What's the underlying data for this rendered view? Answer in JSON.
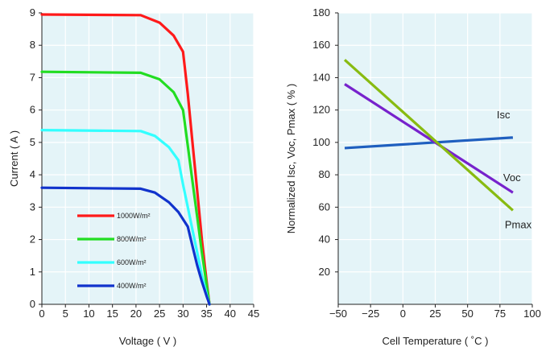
{
  "chart_data": [
    {
      "type": "line",
      "xlabel": "Voltage ( V )",
      "ylabel": "Current ( A )",
      "xlim": [
        0,
        45
      ],
      "ylim": [
        0,
        9
      ],
      "xticks": [
        "0",
        "5",
        "10",
        "15",
        "20",
        "25",
        "30",
        "35",
        "40",
        "45"
      ],
      "yticks": [
        "0",
        "1",
        "2",
        "3",
        "4",
        "5",
        "6",
        "7",
        "8",
        "9"
      ],
      "grid": true,
      "legend_position": "bottom-left",
      "series": [
        {
          "name": "1000W/m²",
          "color": "#ff1a1a",
          "x": [
            0,
            21,
            25,
            28,
            30,
            31,
            32,
            33,
            34,
            35,
            35.6
          ],
          "y": [
            8.95,
            8.93,
            8.7,
            8.3,
            7.8,
            6.5,
            5.0,
            3.5,
            2.0,
            0.7,
            0
          ]
        },
        {
          "name": "800W/m²",
          "color": "#22dd22",
          "x": [
            0,
            21,
            25,
            28,
            30,
            31,
            32,
            33,
            34,
            35,
            35.6
          ],
          "y": [
            7.18,
            7.15,
            6.95,
            6.55,
            6.0,
            4.9,
            3.8,
            2.7,
            1.6,
            0.6,
            0
          ]
        },
        {
          "name": "600W/m²",
          "color": "#33ffff",
          "x": [
            0,
            21,
            24,
            27,
            29,
            30,
            31,
            32,
            33,
            34,
            35,
            35.6
          ],
          "y": [
            5.38,
            5.35,
            5.2,
            4.85,
            4.45,
            3.7,
            3.0,
            2.3,
            1.6,
            0.9,
            0.3,
            0
          ]
        },
        {
          "name": "400W/m²",
          "color": "#1133cc",
          "x": [
            0,
            21,
            24,
            27,
            29,
            31,
            32,
            33,
            34,
            35,
            35.6
          ],
          "y": [
            3.6,
            3.57,
            3.45,
            3.15,
            2.85,
            2.4,
            1.8,
            1.2,
            0.7,
            0.25,
            0
          ]
        }
      ]
    },
    {
      "type": "line",
      "xlabel": "Cell Temperature ( ˚C )",
      "ylabel": "Normalized Isc, Voc, Pmax ( % )",
      "xlim": [
        -50,
        100
      ],
      "ylim": [
        0,
        180
      ],
      "xticks": [
        "−50",
        "−25",
        "0",
        "25",
        "50",
        "75",
        "100"
      ],
      "yticks": [
        "20",
        "40",
        "60",
        "80",
        "100",
        "120",
        "140",
        "160",
        "180"
      ],
      "grid": true,
      "series": [
        {
          "name": "Isc",
          "color": "#1f5fbf",
          "x": [
            -45,
            85
          ],
          "y": [
            96.5,
            103
          ]
        },
        {
          "name": "Voc",
          "color": "#7722cc",
          "x": [
            -45,
            85
          ],
          "y": [
            136,
            69
          ]
        },
        {
          "name": "Pmax",
          "color": "#88bb11",
          "x": [
            -45,
            85
          ],
          "y": [
            151,
            58
          ]
        }
      ]
    }
  ]
}
